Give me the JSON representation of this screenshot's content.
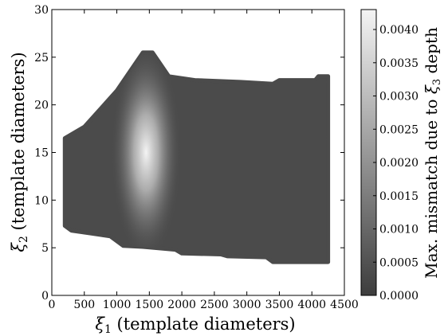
{
  "chart_data": {
    "type": "heatmap",
    "xlabel_sym": "ξ",
    "xlabel_sub": "1",
    "xlabel_text": " (template diameters)",
    "ylabel_sym": "ξ",
    "ylabel_sub": "2",
    "ylabel_text": " (template diameters)",
    "xlim": [
      0,
      4500
    ],
    "ylim": [
      0,
      30
    ],
    "xticks": [
      0,
      500,
      1000,
      1500,
      2000,
      2500,
      3000,
      3500,
      4000,
      4500
    ],
    "yticks": [
      0,
      5,
      10,
      15,
      20,
      25,
      30
    ],
    "colorbar": {
      "label_prefix": "Max. mismatch due to ",
      "label_sym": "ξ",
      "label_sub": "3",
      "label_suffix": " depth",
      "range": [
        0.0,
        0.0043
      ],
      "ticks": [
        "0.0000",
        "0.0005",
        "0.0010",
        "0.0015",
        "0.0020",
        "0.0025",
        "0.0030",
        "0.0035",
        "0.0040"
      ]
    },
    "region": {
      "upper_boundary": [
        [
          200,
          16.5
        ],
        [
          500,
          17.7
        ],
        [
          1000,
          21.5
        ],
        [
          1400,
          25.5
        ],
        [
          1550,
          25.5
        ],
        [
          1800,
          23.0
        ],
        [
          2200,
          22.6
        ],
        [
          2900,
          22.4
        ],
        [
          3400,
          22.2
        ],
        [
          3500,
          22.6
        ],
        [
          4050,
          22.6
        ],
        [
          4100,
          23.0
        ],
        [
          4250,
          23.0
        ]
      ],
      "lower_boundary": [
        [
          4250,
          3.5
        ],
        [
          3400,
          3.5
        ],
        [
          3300,
          4.0
        ],
        [
          2700,
          4.1
        ],
        [
          2600,
          4.3
        ],
        [
          2000,
          4.4
        ],
        [
          1900,
          4.8
        ],
        [
          1400,
          5.1
        ],
        [
          1100,
          5.2
        ],
        [
          900,
          6.2
        ],
        [
          600,
          6.5
        ],
        [
          300,
          6.8
        ],
        [
          200,
          7.3
        ]
      ],
      "peak_value": 0.0043,
      "peak_x": 1450,
      "peak_y": 15,
      "base_value": 0.0001
    }
  }
}
